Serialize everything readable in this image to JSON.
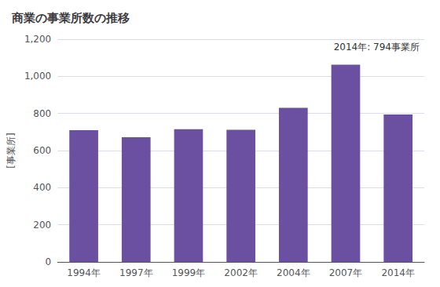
{
  "chart_data": {
    "type": "bar",
    "title": "商業の事業所数の推移",
    "ylabel": "[事業所]",
    "annotation": "2014年: 794事業所",
    "categories": [
      "1994年",
      "1997年",
      "1999年",
      "2002年",
      "2004年",
      "2007年",
      "2014年"
    ],
    "values": [
      710,
      672,
      715,
      712,
      830,
      1063,
      794
    ],
    "color": "#6b4fa0",
    "ylim": [
      0,
      1200
    ],
    "yticks": [
      0,
      200,
      400,
      600,
      800,
      {
        "value": 1000,
        "label": "1,000"
      },
      {
        "value": 1200,
        "label": "1,200"
      }
    ],
    "grid": true
  }
}
